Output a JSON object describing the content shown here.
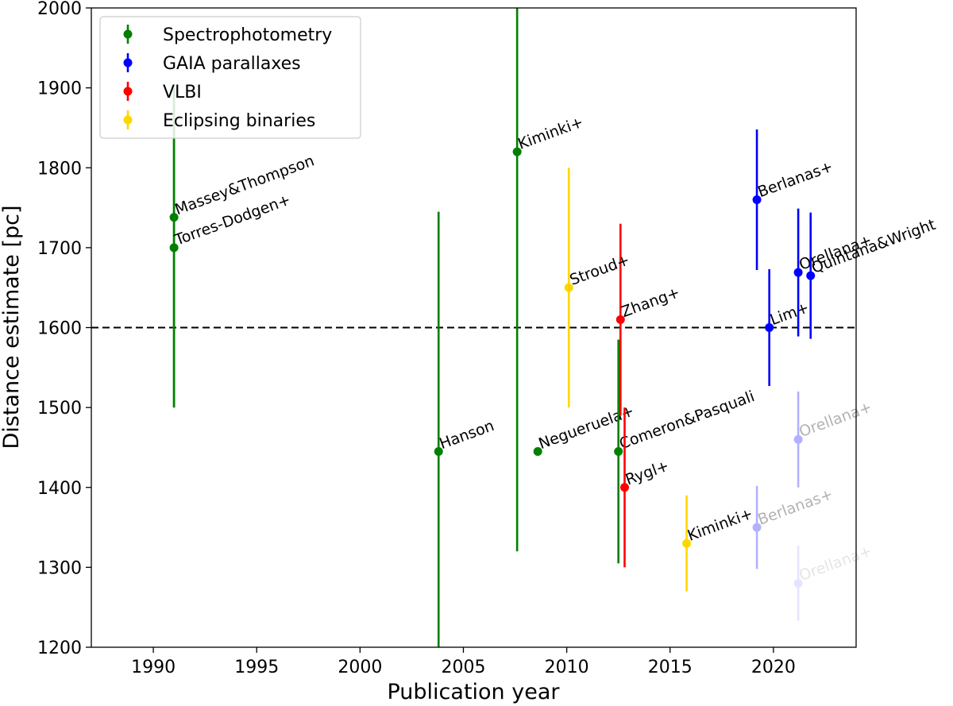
{
  "chart_data": {
    "type": "scatter",
    "title": "",
    "xlabel": "Publication year",
    "ylabel": "Distance estimate [pc]",
    "xlim": [
      1987,
      2024
    ],
    "ylim": [
      1200,
      2000
    ],
    "xticks": [
      1990,
      1995,
      2000,
      2005,
      2010,
      2015,
      2020
    ],
    "yticks": [
      1200,
      1300,
      1400,
      1500,
      1600,
      1700,
      1800,
      1900,
      2000
    ],
    "reference_line": {
      "y": 1600,
      "style": "dashed",
      "color": "#000000"
    },
    "legend_position": "top-left",
    "series": [
      {
        "name": "Spectrophotometry",
        "color": "#008000",
        "points": [
          {
            "label": "Massey&Thompson",
            "x": 1991.0,
            "y": 1738,
            "yerr_low": 1500,
            "yerr_high": 1900,
            "alpha": 1
          },
          {
            "label": "Torres-Dodgen+",
            "x": 1991.0,
            "y": 1700,
            "yerr_low": 1500,
            "yerr_high": 1900,
            "alpha": 1
          },
          {
            "label": "Hanson",
            "x": 2003.8,
            "y": 1445,
            "yerr_low": 1200,
            "yerr_high": 1745,
            "alpha": 1
          },
          {
            "label": "Kiminki+",
            "x": 2007.6,
            "y": 1820,
            "yerr_low": 1320,
            "yerr_high": 2000,
            "alpha": 1
          },
          {
            "label": "Negueruela+",
            "x": 2008.6,
            "y": 1445,
            "yerr_low": 1445,
            "yerr_high": 1445,
            "alpha": 1
          },
          {
            "label": "Comeron&Pasquali",
            "x": 2012.5,
            "y": 1445,
            "yerr_low": 1305,
            "yerr_high": 1585,
            "alpha": 1
          }
        ]
      },
      {
        "name": "GAIA parallaxes",
        "color": "#0000ff",
        "points": [
          {
            "label": "Berlanas+",
            "x": 2019.2,
            "y": 1760,
            "yerr_low": 1672,
            "yerr_high": 1848,
            "alpha": 1
          },
          {
            "label": "Lim+",
            "x": 2019.8,
            "y": 1600,
            "yerr_low": 1527,
            "yerr_high": 1673,
            "alpha": 1
          },
          {
            "label": "Orellana+",
            "x": 2021.2,
            "y": 1669,
            "yerr_low": 1589,
            "yerr_high": 1749,
            "alpha": 1
          },
          {
            "label": "Quintana&Wright",
            "x": 2021.8,
            "y": 1665,
            "yerr_low": 1586,
            "yerr_high": 1744,
            "alpha": 1
          },
          {
            "label": "Orellana+",
            "x": 2021.2,
            "y": 1460,
            "yerr_low": 1400,
            "yerr_high": 1520,
            "alpha": 0.3
          },
          {
            "label": "Berlanas+",
            "x": 2019.2,
            "y": 1350,
            "yerr_low": 1298,
            "yerr_high": 1402,
            "alpha": 0.3
          },
          {
            "label": "Orellana+",
            "x": 2021.2,
            "y": 1280,
            "yerr_low": 1233,
            "yerr_high": 1327,
            "alpha": 0.1
          }
        ]
      },
      {
        "name": "VLBI",
        "color": "#ff0000",
        "points": [
          {
            "label": "Zhang+",
            "x": 2012.6,
            "y": 1610,
            "yerr_low": 1490,
            "yerr_high": 1730,
            "alpha": 1
          },
          {
            "label": "Rygl+",
            "x": 2012.8,
            "y": 1400,
            "yerr_low": 1300,
            "yerr_high": 1500,
            "alpha": 1
          }
        ]
      },
      {
        "name": "Eclipsing binaries",
        "color": "#ffd700",
        "points": [
          {
            "label": "Stroud+",
            "x": 2010.1,
            "y": 1650,
            "yerr_low": 1500,
            "yerr_high": 1800,
            "alpha": 1
          },
          {
            "label": "Kiminki+",
            "x": 2015.8,
            "y": 1330,
            "yerr_low": 1270,
            "yerr_high": 1390,
            "alpha": 1
          }
        ]
      }
    ]
  }
}
